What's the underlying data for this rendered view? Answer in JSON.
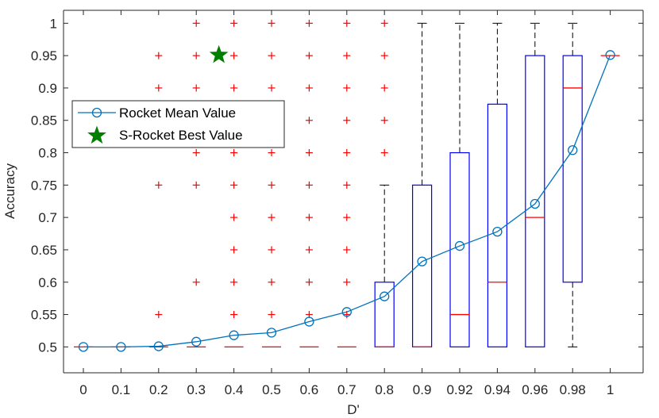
{
  "chart_data": {
    "type": "box",
    "xlabel": "D'",
    "ylabel": "Accuracy",
    "categories": [
      "0",
      "0.1",
      "0.2",
      "0.3",
      "0.4",
      "0.5",
      "0.6",
      "0.7",
      "0.8",
      "0.9",
      "0.92",
      "0.94",
      "0.96",
      "0.98",
      "1"
    ],
    "ylim": [
      0.46,
      1.02
    ],
    "yticks": [
      0.5,
      0.55,
      0.6,
      0.65,
      0.7,
      0.75,
      0.8,
      0.85,
      0.9,
      0.95,
      1
    ],
    "grid": false,
    "legend": {
      "placement": "left",
      "entries": [
        "Rocket Mean Value",
        "S-Rocket Best Value"
      ]
    },
    "series": [
      {
        "name": "Rocket Mean Value",
        "type": "line",
        "color": "#0072BD",
        "values": [
          0.5,
          0.5,
          0.501,
          0.508,
          0.518,
          0.522,
          0.539,
          0.554,
          0.578,
          0.632,
          0.656,
          0.678,
          0.721,
          0.804,
          0.951
        ]
      },
      {
        "name": "S-Rocket Best Value",
        "type": "scatter",
        "marker": "star",
        "color": "#007F00",
        "points": [
          {
            "x": 3.6,
            "y": 0.951
          }
        ]
      }
    ],
    "boxes": [
      {
        "category": "0",
        "q1": 0.5,
        "median": 0.5,
        "q3": 0.5,
        "lower": 0.5,
        "upper": 0.5,
        "outliers": []
      },
      {
        "category": "0.1",
        "q1": 0.5,
        "median": 0.5,
        "q3": 0.5,
        "lower": 0.5,
        "upper": 0.5,
        "outliers": []
      },
      {
        "category": "0.2",
        "q1": 0.5,
        "median": 0.5,
        "q3": 0.5,
        "lower": 0.5,
        "upper": 0.5,
        "outliers": [
          0.55,
          0.75,
          0.9,
          0.95
        ]
      },
      {
        "category": "0.3",
        "q1": 0.5,
        "median": 0.5,
        "q3": 0.5,
        "lower": 0.5,
        "upper": 0.5,
        "outliers": [
          0.6,
          0.75,
          0.8,
          0.85,
          0.9,
          0.95,
          1
        ]
      },
      {
        "category": "0.4",
        "q1": 0.5,
        "median": 0.5,
        "q3": 0.5,
        "lower": 0.5,
        "upper": 0.5,
        "outliers": [
          0.55,
          0.6,
          0.65,
          0.7,
          0.75,
          0.8,
          0.85,
          0.9,
          0.95,
          1
        ]
      },
      {
        "category": "0.5",
        "q1": 0.5,
        "median": 0.5,
        "q3": 0.5,
        "lower": 0.5,
        "upper": 0.5,
        "outliers": [
          0.55,
          0.6,
          0.65,
          0.7,
          0.75,
          0.8,
          0.85,
          0.9,
          0.95,
          1
        ]
      },
      {
        "category": "0.6",
        "q1": 0.5,
        "median": 0.5,
        "q3": 0.5,
        "lower": 0.5,
        "upper": 0.5,
        "outliers": [
          0.55,
          0.6,
          0.65,
          0.7,
          0.75,
          0.8,
          0.85,
          0.9,
          0.95,
          1
        ]
      },
      {
        "category": "0.7",
        "q1": 0.5,
        "median": 0.5,
        "q3": 0.5,
        "lower": 0.5,
        "upper": 0.5,
        "outliers": [
          0.55,
          0.6,
          0.65,
          0.7,
          0.75,
          0.8,
          0.85,
          0.9,
          0.95,
          1
        ]
      },
      {
        "category": "0.8",
        "q1": 0.5,
        "median": 0.5,
        "q3": 0.6,
        "lower": 0.5,
        "upper": 0.75,
        "outliers": [
          0.8,
          0.85,
          0.9,
          0.95,
          1
        ]
      },
      {
        "category": "0.9",
        "q1": 0.5,
        "median": 0.5,
        "q3": 0.75,
        "lower": 0.5,
        "upper": 1.0,
        "outliers": []
      },
      {
        "category": "0.92",
        "q1": 0.5,
        "median": 0.55,
        "q3": 0.8,
        "lower": 0.5,
        "upper": 1.0,
        "outliers": []
      },
      {
        "category": "0.94",
        "q1": 0.5,
        "median": 0.6,
        "q3": 0.875,
        "lower": 0.5,
        "upper": 1.0,
        "outliers": []
      },
      {
        "category": "0.96",
        "q1": 0.5,
        "median": 0.7,
        "q3": 0.95,
        "lower": 0.5,
        "upper": 1.0,
        "outliers": []
      },
      {
        "category": "0.98",
        "q1": 0.6,
        "median": 0.9,
        "q3": 0.95,
        "lower": 0.5,
        "upper": 1.0,
        "outliers": []
      },
      {
        "category": "1",
        "q1": 0.95,
        "median": 0.95,
        "q3": 0.95,
        "lower": 0.95,
        "upper": 0.95,
        "outliers": []
      }
    ],
    "colors": {
      "box": "#0000FF",
      "median": "#FF0000",
      "outlier": "#FF0000",
      "whisker": "#000000",
      "mean_line": "#0072BD",
      "best_star": "#007F00",
      "axis": "#262626"
    }
  }
}
